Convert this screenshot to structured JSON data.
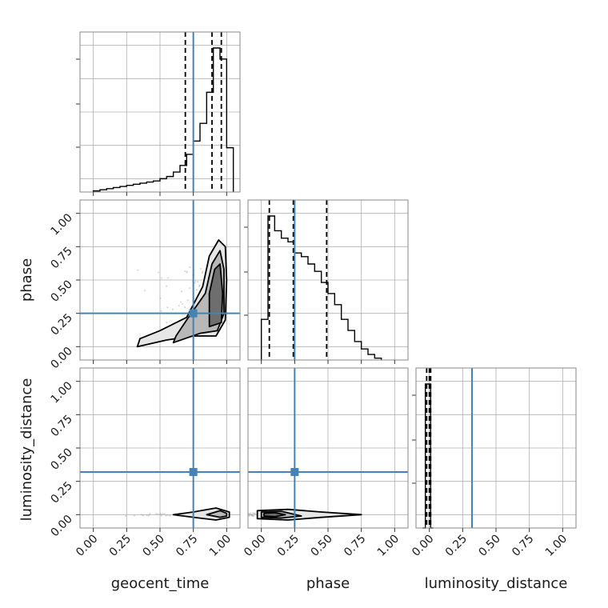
{
  "chart_data": {
    "type": "corner",
    "parameters": [
      "geocent_time",
      "phase",
      "luminosity_distance"
    ],
    "truths": {
      "geocent_time": 0.75,
      "phase": 0.25,
      "luminosity_distance": 0.32
    },
    "colors": {
      "truth": "#4682b4",
      "hist": "#000000",
      "grid": "#b0b0b0",
      "frame": "#888888"
    },
    "ticks": [
      "0.00",
      "0.25",
      "0.50",
      "0.75",
      "1.00"
    ],
    "marginals": [
      {
        "parameter": "geocent_time",
        "quantiles": [
          0.69,
          0.89,
          0.96
        ],
        "range": [
          -0.1,
          1.1
        ],
        "bin_edges": [
          0.0,
          0.05,
          0.1,
          0.15,
          0.2,
          0.25,
          0.3,
          0.35,
          0.4,
          0.45,
          0.5,
          0.55,
          0.6,
          0.65,
          0.7,
          0.75,
          0.8,
          0.85,
          0.9,
          0.95,
          1.0,
          1.05
        ],
        "counts": [
          1,
          2,
          3,
          4,
          5,
          6,
          7,
          8,
          9,
          10,
          12,
          14,
          18,
          24,
          34,
          46,
          62,
          90,
          130,
          120,
          40
        ]
      },
      {
        "parameter": "phase",
        "quantiles": [
          0.06,
          0.24,
          0.49
        ],
        "range": [
          -0.1,
          1.1
        ],
        "bin_edges": [
          0.0,
          0.05,
          0.1,
          0.15,
          0.2,
          0.25,
          0.3,
          0.35,
          0.4,
          0.45,
          0.5,
          0.55,
          0.6,
          0.65,
          0.7,
          0.75,
          0.8,
          0.85,
          0.9
        ],
        "counts": [
          22,
          78,
          70,
          66,
          64,
          58,
          56,
          52,
          48,
          42,
          36,
          30,
          22,
          16,
          10,
          6,
          3,
          1
        ]
      },
      {
        "parameter": "luminosity_distance",
        "quantiles": [
          -0.02,
          0.0,
          0.01
        ],
        "range": [
          -0.1,
          1.1
        ],
        "bin_edges": [
          -0.05,
          -0.03,
          -0.01,
          0.01,
          0.03
        ],
        "counts": [
          0,
          1,
          1,
          0
        ]
      }
    ],
    "joint": [
      {
        "x": "geocent_time",
        "y": "phase",
        "note_density_peak": [
          0.93,
          0.35
        ],
        "contours": [
          [
            [
              0.33,
              0.0
            ],
            [
              0.55,
              0.05
            ],
            [
              0.75,
              0.08
            ],
            [
              0.92,
              0.08
            ],
            [
              0.99,
              0.2
            ],
            [
              1.0,
              0.5
            ],
            [
              0.99,
              0.75
            ],
            [
              0.94,
              0.8
            ],
            [
              0.87,
              0.68
            ],
            [
              0.82,
              0.45
            ],
            [
              0.7,
              0.22
            ],
            [
              0.5,
              0.12
            ],
            [
              0.35,
              0.06
            ]
          ],
          [
            [
              0.6,
              0.03
            ],
            [
              0.8,
              0.1
            ],
            [
              0.93,
              0.12
            ],
            [
              0.98,
              0.25
            ],
            [
              0.98,
              0.58
            ],
            [
              0.95,
              0.72
            ],
            [
              0.89,
              0.62
            ],
            [
              0.84,
              0.4
            ],
            [
              0.7,
              0.2
            ],
            [
              0.62,
              0.08
            ]
          ],
          [
            [
              0.87,
              0.15
            ],
            [
              0.96,
              0.18
            ],
            [
              0.97,
              0.4
            ],
            [
              0.95,
              0.62
            ],
            [
              0.91,
              0.58
            ],
            [
              0.87,
              0.4
            ]
          ]
        ]
      },
      {
        "x": "geocent_time",
        "y": "luminosity_distance",
        "note_density_peak": [
          0.93,
          0.0
        ],
        "contours": [
          [
            [
              0.6,
              0.0
            ],
            [
              0.75,
              -0.02
            ],
            [
              0.92,
              -0.04
            ],
            [
              1.02,
              -0.02
            ],
            [
              1.02,
              0.02
            ],
            [
              0.92,
              0.05
            ],
            [
              0.75,
              0.02
            ],
            [
              0.6,
              0.0
            ]
          ],
          [
            [
              0.85,
              0.0
            ],
            [
              0.95,
              -0.02
            ],
            [
              1.0,
              -0.01
            ],
            [
              1.0,
              0.01
            ],
            [
              0.95,
              0.03
            ],
            [
              0.85,
              0.0
            ]
          ]
        ]
      },
      {
        "x": "phase",
        "y": "luminosity_distance",
        "note_density_peak": [
          0.05,
          0.0
        ],
        "contours": [
          [
            [
              -0.03,
              -0.03
            ],
            [
              0.2,
              -0.04
            ],
            [
              0.45,
              -0.02
            ],
            [
              0.75,
              0.0
            ],
            [
              0.45,
              0.02
            ],
            [
              0.2,
              0.04
            ],
            [
              -0.03,
              0.03
            ]
          ],
          [
            [
              0.0,
              -0.02
            ],
            [
              0.15,
              -0.025
            ],
            [
              0.3,
              -0.01
            ],
            [
              0.15,
              0.025
            ],
            [
              0.0,
              0.02
            ]
          ],
          [
            [
              0.02,
              -0.01
            ],
            [
              0.1,
              -0.015
            ],
            [
              0.18,
              0.0
            ],
            [
              0.1,
              0.015
            ],
            [
              0.02,
              0.01
            ]
          ]
        ]
      }
    ]
  }
}
